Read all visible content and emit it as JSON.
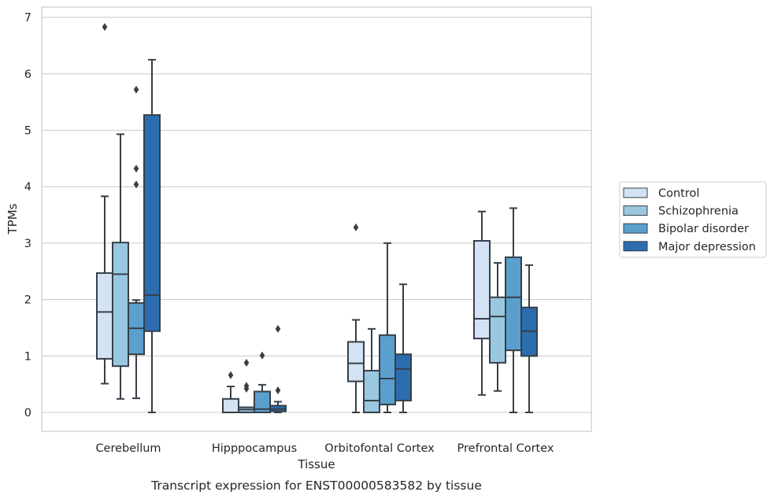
{
  "chart_data": {
    "type": "box",
    "title": "Transcript expression for ENST00000583582 by tissue",
    "xlabel": "Tissue",
    "ylabel": "TPMs",
    "ylim": [
      -0.33,
      7.2
    ],
    "yticks": [
      0,
      1,
      2,
      3,
      4,
      5,
      6,
      7
    ],
    "ytick_labels": [
      "0",
      "1",
      "2",
      "3",
      "4",
      "5",
      "6",
      "7"
    ],
    "grid": "horizontal",
    "legend_position": "right",
    "categories": [
      "Cerebellum",
      "Hipppocampus",
      "Orbitofontal Cortex",
      "Prefrontal Cortex"
    ],
    "series": [
      {
        "name": "Control",
        "color": "#d3e3f3",
        "boxes": [
          {
            "whislo": 0.51,
            "q1": 0.95,
            "med": 1.78,
            "q3": 2.47,
            "whishi": 3.83,
            "fliers": [
              6.83
            ]
          },
          {
            "whislo": 0.0,
            "q1": 0.0,
            "med": 0.0,
            "q3": 0.24,
            "whishi": 0.46,
            "fliers": [
              0.66
            ]
          },
          {
            "whislo": 0.0,
            "q1": 0.55,
            "med": 0.87,
            "q3": 1.25,
            "whishi": 1.64,
            "fliers": [
              3.28
            ]
          },
          {
            "whislo": 0.31,
            "q1": 1.31,
            "med": 1.66,
            "q3": 3.04,
            "whishi": 3.56,
            "fliers": []
          }
        ]
      },
      {
        "name": "Schizophrenia",
        "color": "#9ac8e0",
        "boxes": [
          {
            "whislo": 0.24,
            "q1": 0.82,
            "med": 2.45,
            "q3": 3.01,
            "whishi": 4.93,
            "fliers": []
          },
          {
            "whislo": 0.0,
            "q1": 0.0,
            "med": 0.05,
            "q3": 0.09,
            "whishi": 0.09,
            "fliers": [
              0.42,
              0.47,
              0.88
            ]
          },
          {
            "whislo": 0.0,
            "q1": 0.0,
            "med": 0.21,
            "q3": 0.74,
            "whishi": 1.48,
            "fliers": []
          },
          {
            "whislo": 0.38,
            "q1": 0.88,
            "med": 1.7,
            "q3": 2.04,
            "whishi": 2.65,
            "fliers": []
          }
        ]
      },
      {
        "name": "Bipolar disorder",
        "color": "#5a9fce",
        "boxes": [
          {
            "whislo": 0.25,
            "q1": 1.03,
            "med": 1.49,
            "q3": 1.94,
            "whishi": 1.99,
            "fliers": [
              4.04,
              4.32,
              5.72
            ]
          },
          {
            "whislo": 0.0,
            "q1": 0.0,
            "med": 0.06,
            "q3": 0.37,
            "whishi": 0.49,
            "fliers": [
              1.01
            ]
          },
          {
            "whislo": 0.0,
            "q1": 0.14,
            "med": 0.6,
            "q3": 1.37,
            "whishi": 3.0,
            "fliers": []
          },
          {
            "whislo": 0.0,
            "q1": 1.1,
            "med": 2.04,
            "q3": 2.75,
            "whishi": 3.62,
            "fliers": []
          }
        ]
      },
      {
        "name": "Major depression",
        "color": "#2b6daf",
        "boxes": [
          {
            "whislo": 0.0,
            "q1": 1.44,
            "med": 2.08,
            "q3": 5.27,
            "whishi": 6.25,
            "fliers": []
          },
          {
            "whislo": 0.0,
            "q1": 0.02,
            "med": 0.06,
            "q3": 0.12,
            "whishi": 0.19,
            "fliers": [
              0.39,
              1.48
            ]
          },
          {
            "whislo": 0.0,
            "q1": 0.21,
            "med": 0.77,
            "q3": 1.03,
            "whishi": 2.27,
            "fliers": []
          },
          {
            "whislo": 0.0,
            "q1": 1.0,
            "med": 1.44,
            "q3": 1.86,
            "whishi": 2.61,
            "fliers": []
          }
        ]
      }
    ]
  }
}
